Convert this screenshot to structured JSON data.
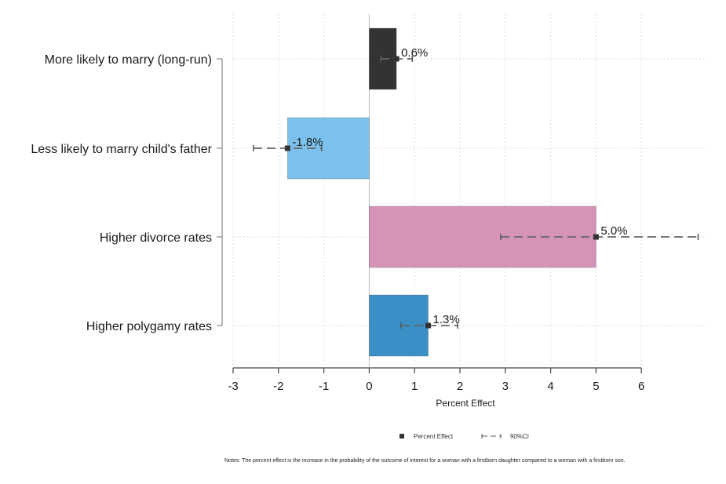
{
  "chart_data": {
    "type": "bar",
    "orientation": "horizontal",
    "categories": [
      "More likely to marry (long-run)",
      "Less likely to marry child's father",
      "Higher divorce rates",
      "Higher polygamy rates"
    ],
    "values": [
      0.6,
      -1.8,
      5.0,
      1.3
    ],
    "value_labels": [
      "0.6%",
      "-1.8%",
      "5.0%",
      "1.3%"
    ],
    "ci_lower": [
      0.25,
      -2.55,
      2.9,
      0.7
    ],
    "ci_upper": [
      0.95,
      -1.05,
      7.25,
      1.95
    ],
    "bar_colors": [
      "#333333",
      "#7cc1ec",
      "#d593b8",
      "#3a8fc6"
    ],
    "xlabel": "Percent Effect",
    "xlim": [
      -3,
      7.5
    ],
    "xticks": [
      "-3",
      "-2",
      "-1",
      "0",
      "1",
      "2",
      "3",
      "4",
      "5",
      "6"
    ],
    "grid": true,
    "legend_position": "bottom",
    "legend": [
      "Percent Effect",
      "90%CI"
    ],
    "note": "Notes: The percent effect is the increase in the probability of the outcome of interest for a woman with a firstborn daughter compared to a woman with a firstborn son."
  }
}
